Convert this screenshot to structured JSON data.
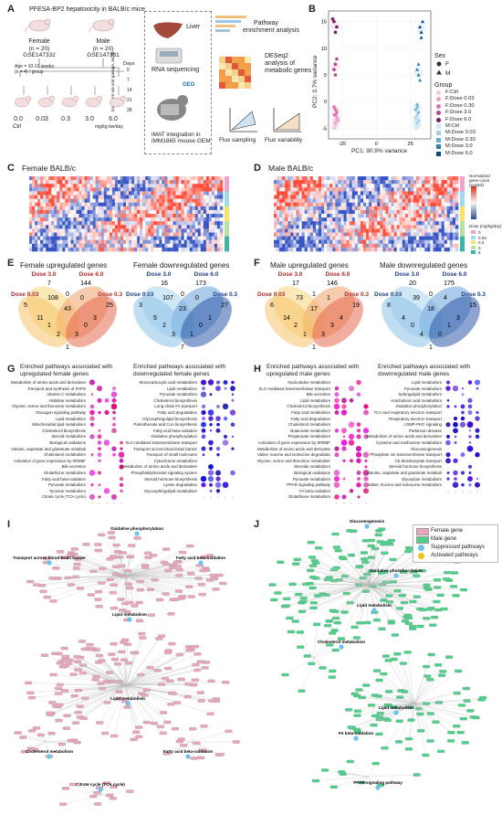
{
  "panelA": {
    "letter": "A",
    "title": "PFESA-BP2 hepatoxicity in BALB/c mice",
    "female_label": "Female",
    "female_n": "(n = 20)",
    "female_gse": "GSE147332",
    "male_label": "Male",
    "male_n": "(n = 20)",
    "male_gse": "GSE147331",
    "age_note": "Age = 10-12 weeks",
    "group_note": "(n = 4) / group",
    "days_label": "Days",
    "exposure_label": "Exposure via oral gavage, ad lib",
    "doses": [
      "0.0",
      "0.03",
      "0.3",
      "3.0",
      "6.0"
    ],
    "dose_ctrl": "Ctrl",
    "dose_unit": "mg/kg bw/day",
    "liver_label": "Liver",
    "rnaseq_label": "RNA sequencing",
    "geo_label": "GEO",
    "imat_label": "iMAT integration in",
    "imat_label2": "iMM1865 mouse GEM",
    "pathway_label": "Pathway",
    "pathway_label2": "enrichment analysis",
    "deseq_label": "DESeq2",
    "deseq_label2": "analysis of",
    "deseq_label3": "metabolic genes",
    "flux_sampling": "Flux sampling",
    "flux_variability": "Flux variability",
    "v1": "V₁",
    "v2": "V₂"
  },
  "panelB": {
    "letter": "B",
    "chart_data": {
      "type": "scatter",
      "xlabel": "PC1: 90.9% variance",
      "ylabel": "PC2: 3.7% variance",
      "xticks": [
        "-25",
        "0",
        "25"
      ],
      "yticks": [
        "-5",
        "0",
        "5",
        "10",
        "15"
      ],
      "xlim": [
        -35,
        40
      ],
      "ylim": [
        -7,
        17
      ],
      "legend_sex_title": "Sex",
      "legend_sex": [
        "F",
        "M"
      ],
      "legend_group_title": "Group",
      "legend_groups": [
        "F:Ctrl",
        "F:Dose 0.03",
        "F:Dose 0.30",
        "F:Dose 3.0",
        "F:Dose 6.0",
        "M:Ctrl",
        "M:Dose 0.03",
        "M:Dose 0.30",
        "M:Dose 3.0",
        "M:Dose 6.0"
      ],
      "group_colors": [
        "#f2c6dd",
        "#e9a2c8",
        "#d873b0",
        "#b5448f",
        "#7d1a63",
        "#cfe5f2",
        "#a3cfe6",
        "#66aed4",
        "#2e7eb8",
        "#0a4a8a"
      ],
      "series": [
        {
          "name": "F:Ctrl",
          "x": [
            -30,
            -29,
            -31,
            -30
          ],
          "y": [
            -4.5,
            -3.5,
            -5,
            -4
          ]
        },
        {
          "name": "F:Dose 0.03",
          "x": [
            -29,
            -30,
            -31,
            -28
          ],
          "y": [
            -3,
            -4,
            -2.5,
            -3.5
          ]
        },
        {
          "name": "F:Dose 0.30",
          "x": [
            -30,
            -29,
            -31,
            -30
          ],
          "y": [
            -1.5,
            -2,
            -1,
            -2.5
          ]
        },
        {
          "name": "F:Dose 3.0",
          "x": [
            -30,
            -31,
            -29,
            -30
          ],
          "y": [
            7,
            6,
            8,
            5
          ]
        },
        {
          "name": "F:Dose 6.0",
          "x": [
            -29,
            -31,
            -30,
            -32
          ],
          "y": [
            14,
            15,
            13,
            15.5
          ]
        },
        {
          "name": "M:Ctrl",
          "x": [
            30,
            29,
            31,
            30
          ],
          "y": [
            -4,
            -5,
            -3.5,
            -4.5
          ]
        },
        {
          "name": "M:Dose 0.03",
          "x": [
            29,
            30,
            31,
            30
          ],
          "y": [
            -3,
            -2.5,
            -3.5,
            -4
          ]
        },
        {
          "name": "M:Dose 0.30",
          "x": [
            30,
            31,
            29,
            30
          ],
          "y": [
            -1,
            -2,
            -1.5,
            -0.5
          ]
        },
        {
          "name": "M:Dose 3.0",
          "x": [
            31,
            30,
            32,
            31
          ],
          "y": [
            5,
            6,
            4,
            7
          ]
        },
        {
          "name": "M:Dose 6.0",
          "x": [
            33,
            34,
            32,
            33
          ],
          "y": [
            13,
            15,
            14,
            12
          ]
        }
      ]
    }
  },
  "panelC": {
    "letter": "C",
    "title": "Female BALB/c",
    "legend_expr": "Normalized gene count (scaled)",
    "legend_dose": "Dose (mg/kg/day)",
    "legend_dose_values": [
      "0",
      "0.03",
      "0.3",
      "3",
      "6"
    ],
    "group_colors": [
      "#f3a3c9",
      "#a0d8ef",
      "#f7e26b",
      "#b6e3a1",
      "#3cb5a8"
    ]
  },
  "panelD": {
    "letter": "D",
    "title": "Male BALB/c",
    "legend_expr": "Normalized gene count (scaled)",
    "legend_dose": "Dose (mg/kg/day)",
    "legend_dose_values": [
      "0",
      "0.03",
      "0.3",
      "3",
      "6"
    ]
  },
  "panelE": {
    "letter": "E",
    "up_title": "Female upregulated genes",
    "down_title": "Female downregulated genes",
    "up_sets": [
      "Dose 3.0",
      "Dose 6.0",
      "Dose 0.03",
      "Dose 0.3"
    ],
    "up_values": [
      "7",
      "144",
      "5",
      "25",
      "0",
      "108",
      "0",
      "43",
      "11",
      "3",
      "1",
      "0",
      "2",
      "3",
      "1"
    ],
    "down_sets": [
      "Dose 3.0",
      "Dose 6.0",
      "Dose 0.03",
      "Dose 0.3"
    ],
    "down_values": [
      "16",
      "173",
      "3",
      "27",
      "0",
      "107",
      "0",
      "23",
      "5",
      "1",
      "2",
      "0",
      "3",
      "1",
      "7"
    ]
  },
  "panelF": {
    "letter": "F",
    "up_title": "Male upregulated genes",
    "down_title": "Male downregulated genes",
    "up_sets": [
      "Dose 3.0",
      "Dose 6.0",
      "Dose 0.03",
      "Dose 0.3"
    ],
    "up_values": [
      "17",
      "146",
      "6",
      "19",
      "1",
      "73",
      "1",
      "17",
      "14",
      "4",
      "2",
      "3",
      "1",
      "3",
      "1"
    ],
    "down_sets": [
      "Dose 3.0",
      "Dose 6.0",
      "Dose 0.03",
      "Dose 0.3"
    ],
    "down_values": [
      "20",
      "175",
      "8",
      "15",
      "0",
      "39",
      "4",
      "18",
      "4",
      "3",
      "0",
      "1",
      "4",
      "0",
      "1"
    ]
  },
  "panelG": {
    "letter": "G",
    "up_title": "Enriched pathways associated with",
    "up_title2": "upregulated female genes",
    "down_title": "Enriched pathways associated with",
    "down_title2": "downregulated female genes",
    "up_pathways": [
      "Metabolism of amino acids and derivatives",
      "Transport and synthesis of PAPS",
      "Vitamin C metabolism",
      "Histidine metabolism",
      "Glycine, serine and threonine metabolism",
      "Glucagon signaling pathway",
      "Lipid metabolism",
      "Mitochondrial lipid metabolism",
      "Cholesterol biosynthesis",
      "Steroid metabolism",
      "Biological oxidations",
      "Alanine, aspartate and glutamate metabolism",
      "Cholesterol metabolism",
      "Activation of gene expression by SREBF",
      "Bile secretion",
      "Glutathione metabolism",
      "Fatty acid beta-oxidation",
      "Pyruvate metabolism",
      "Tyrosine metabolism",
      "Citrate cycle (TCA cycle)"
    ],
    "down_pathways": [
      "Monocarboxylic acid metabolism",
      "Lipid metabolism",
      "Pyruvate metabolism",
      "Cholesterol biosynthesis",
      "Long-chain FA transport",
      "Fatty acid degradation",
      "Glycosphingolipid biosynthesis",
      "Pantothenate and CoA biosynthesis",
      "Fatty acid beta-oxidation",
      "Oxidative phosphorylation",
      "SLC-mediated transmembrane transport",
      "Transport across blood-brain barrier",
      "Transport of small molecules",
      "Cytochrome metabolism",
      "Metabolism of amino acids and derivatives",
      "Phosphatidylinositol signaling system",
      "Steroid hormone biosynthesis",
      "Lysine degradation",
      "Glycosphingolipid metabolism"
    ],
    "legend_title": "-log10(p-value)",
    "legend_count": "Gene Count"
  },
  "panelH": {
    "letter": "H",
    "up_title": "Enriched pathways associated with",
    "up_title2": "upregulated male genes",
    "down_title": "Enriched pathways associated with",
    "down_title2": "downregulated male genes",
    "up_pathways": [
      "Nucleotides metabolism",
      "SLC-mediated transmembrane transport",
      "Bile secretion",
      "Lipid metabolism",
      "Cholesterol biosynthesis",
      "Fatty acid metabolism",
      "Fatty acid degradation",
      "Cholesterol metabolism",
      "Butanoate metabolism",
      "Propanoate metabolism",
      "Activation of gene expression by SREBF",
      "Metabolism of amino acids and derivatives",
      "Valine, leucine and isoleucine degradation",
      "Glycine, serine and threonine metabolism",
      "Steroids metabolism",
      "Biological oxidations",
      "Pyruvate metabolism",
      "PPAR signaling pathway",
      "FA beta-oxidation",
      "Glutathione metabolism"
    ],
    "down_pathways": [
      "Lipid metabolism",
      "Pyruvate metabolism",
      "Sphingolipid metabolism",
      "Arachidonic acid metabolism",
      "Oxidative phosphorylation",
      "TCA and respiratory electron transport",
      "Respiratory electron transport",
      "cGMP-PKG signaling",
      "Parkinson disease",
      "Metabolism of amino acids and derivatives",
      "Cysteine and methionine metabolism",
      "Gluconeogenesis",
      "Phosphate ion transmembrane transport",
      "C5-dicarboxylate transport",
      "Steroid hormone biosynthesis",
      "Alanine, aspartate and glutamate metabolism",
      "Glyoxylate metabolism",
      "Valine, leucine and isoleucine metabolism"
    ],
    "legend_title": "-log10(p-value)",
    "legend_count": "Gene Count"
  },
  "panelI": {
    "letter": "I",
    "hubs": [
      "Oxidative phosphorylation",
      "Transport across blood-brain barrier",
      "Fatty acid beta-oxidation",
      "Lipid metabolism",
      "Lipid metabolism",
      "Cholesterol metabolism",
      "Fatty acid beta-oxidation",
      "Citrate cycle (TCA cycle)"
    ]
  },
  "panelJ": {
    "letter": "J",
    "legend": [
      "Female gene",
      "Male gene",
      "Suppressed pathways",
      "Activated pathways"
    ],
    "hubs": [
      "Gluconeogenesis",
      "Oxidative phosphorylation",
      "Lipid metabolism",
      "Cholesterol metabolism",
      "Lipid metabolism",
      "FA beta-oxidation",
      "PPAR signaling pathway"
    ]
  }
}
